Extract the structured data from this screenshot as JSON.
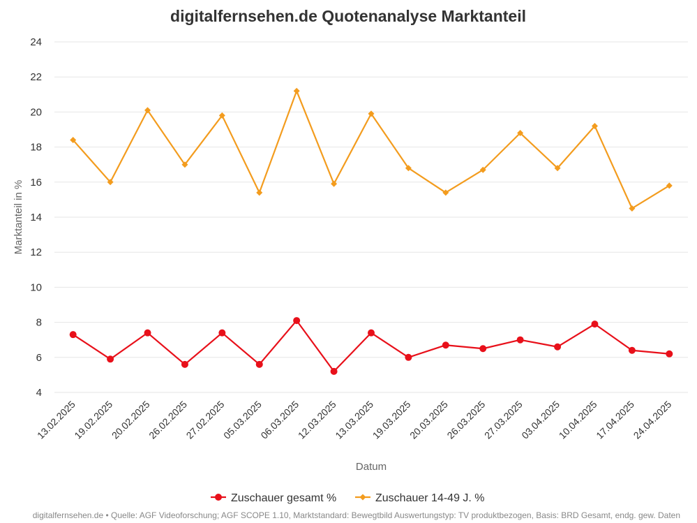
{
  "chart_data": {
    "type": "line",
    "title": "digitalfernsehen.de Quotenanalyse Marktanteil",
    "xlabel": "Datum",
    "ylabel": "Marktanteil in %",
    "ylim": [
      4,
      24
    ],
    "yticks": [
      "4",
      "6",
      "8",
      "10",
      "12",
      "14",
      "16",
      "18",
      "20",
      "22",
      "24"
    ],
    "grid": true,
    "legend_position": "bottom",
    "categories": [
      "13.02.2025",
      "19.02.2025",
      "20.02.2025",
      "26.02.2025",
      "27.02.2025",
      "05.03.2025",
      "06.03.2025",
      "12.03.2025",
      "13.03.2025",
      "19.03.2025",
      "20.03.2025",
      "26.03.2025",
      "27.03.2025",
      "03.04.2025",
      "10.04.2025",
      "17.04.2025",
      "24.04.2025"
    ],
    "series": [
      {
        "name": "Zuschauer gesamt %",
        "color": "#e8101a",
        "marker": "circle",
        "values": [
          7.3,
          5.9,
          7.4,
          5.6,
          7.4,
          5.6,
          8.1,
          5.2,
          7.4,
          6.0,
          6.7,
          6.5,
          7.0,
          6.6,
          7.9,
          6.4,
          6.2
        ]
      },
      {
        "name": "Zuschauer 14-49 J. %",
        "color": "#f39c1e",
        "marker": "diamond",
        "values": [
          18.4,
          16.0,
          20.1,
          17.0,
          19.8,
          15.4,
          21.2,
          15.9,
          19.9,
          16.8,
          15.4,
          16.7,
          18.8,
          16.8,
          19.2,
          14.5,
          15.8
        ]
      }
    ],
    "source": "digitalfernsehen.de • Quelle: AGF Videoforschung; AGF SCOPE 1.10, Marktstandard: Bewegtbild Auswertungstyp: TV produktbezogen, Basis: BRD Gesamt, endg. gew. Daten"
  }
}
